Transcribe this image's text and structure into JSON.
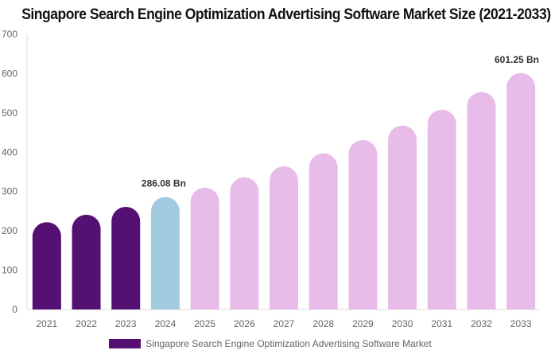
{
  "chart_data": {
    "type": "bar",
    "title": "Singapore Search Engine Optimization Advertising Software Market Size (2021-2033)",
    "categories": [
      "2021",
      "2022",
      "2023",
      "2024",
      "2025",
      "2026",
      "2027",
      "2028",
      "2029",
      "2030",
      "2031",
      "2032",
      "2033"
    ],
    "series": [
      {
        "name": "Singapore Search Engine Optimization Advertising Software Market",
        "values": [
          222,
          241,
          261,
          286.08,
          310,
          336,
          364,
          397,
          431,
          468,
          508,
          553,
          601.25
        ]
      }
    ],
    "data_labels": {
      "3": "286.08 Bn",
      "12": "601.25 Bn"
    },
    "ylim": [
      0,
      700
    ],
    "yticks": [
      0,
      100,
      200,
      300,
      400,
      500,
      600,
      700
    ],
    "grid": false,
    "legend": "bottom",
    "colors": {
      "historical": "#541173",
      "base_year": "#a3cbdf",
      "forecast": "#e8bce8"
    }
  }
}
